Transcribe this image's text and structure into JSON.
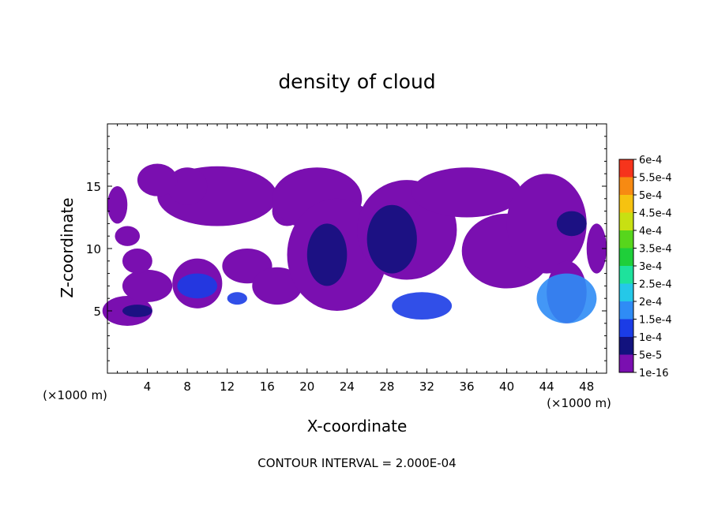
{
  "chart_data": {
    "type": "heatmap",
    "title": "density of cloud",
    "xlabel": "X-coordinate",
    "ylabel": "Z-coordinate",
    "x_unit": "(×1000 m)",
    "z_unit": "(×1000 m)",
    "footer": "CONTOUR INTERVAL = 2.000E-04",
    "xlim": [
      0,
      50
    ],
    "ylim": [
      0,
      20
    ],
    "x_ticks": [
      4,
      8,
      12,
      16,
      20,
      24,
      28,
      32,
      36,
      40,
      44,
      48
    ],
    "y_ticks": [
      5,
      10,
      15
    ],
    "colorbar": {
      "labels": [
        "1e-16",
        "5e-5",
        "1e-4",
        "1.5e-4",
        "2e-4",
        "2.5e-4",
        "3e-4",
        "3.5e-4",
        "4e-4",
        "4.5e-4",
        "5e-4",
        "5.5e-4",
        "6e-4"
      ],
      "colors": [
        "#7a0fb0",
        "#12127e",
        "#1b3ce6",
        "#2f8cf5",
        "#25c8e8",
        "#1ee29c",
        "#1fcf3a",
        "#57d61c",
        "#c8e012",
        "#f6c210",
        "#f78a12",
        "#f6341c",
        "#f77fa0"
      ]
    },
    "cloud_regions": [
      {
        "x": [
          1.5,
          4.5
        ],
        "z": [
          4.5,
          5.5
        ],
        "level": "5e-5"
      },
      {
        "x": [
          7,
          11
        ],
        "z": [
          6,
          8
        ],
        "level": "1e-4"
      },
      {
        "x": [
          12,
          14
        ],
        "z": [
          5.5,
          6.5
        ],
        "level": "1e-4"
      },
      {
        "x": [
          20,
          24
        ],
        "z": [
          7,
          12
        ],
        "level": "5e-5"
      },
      {
        "x": [
          26,
          31
        ],
        "z": [
          8,
          13.5
        ],
        "level": "5e-5"
      },
      {
        "x": [
          28.5,
          34.5
        ],
        "z": [
          4.3,
          6.5
        ],
        "level": "1e-4"
      },
      {
        "x": [
          43,
          49
        ],
        "z": [
          4,
          8
        ],
        "level": "1.5e-4"
      },
      {
        "x": [
          45,
          48
        ],
        "z": [
          11,
          13
        ],
        "level": "5e-5"
      }
    ]
  }
}
